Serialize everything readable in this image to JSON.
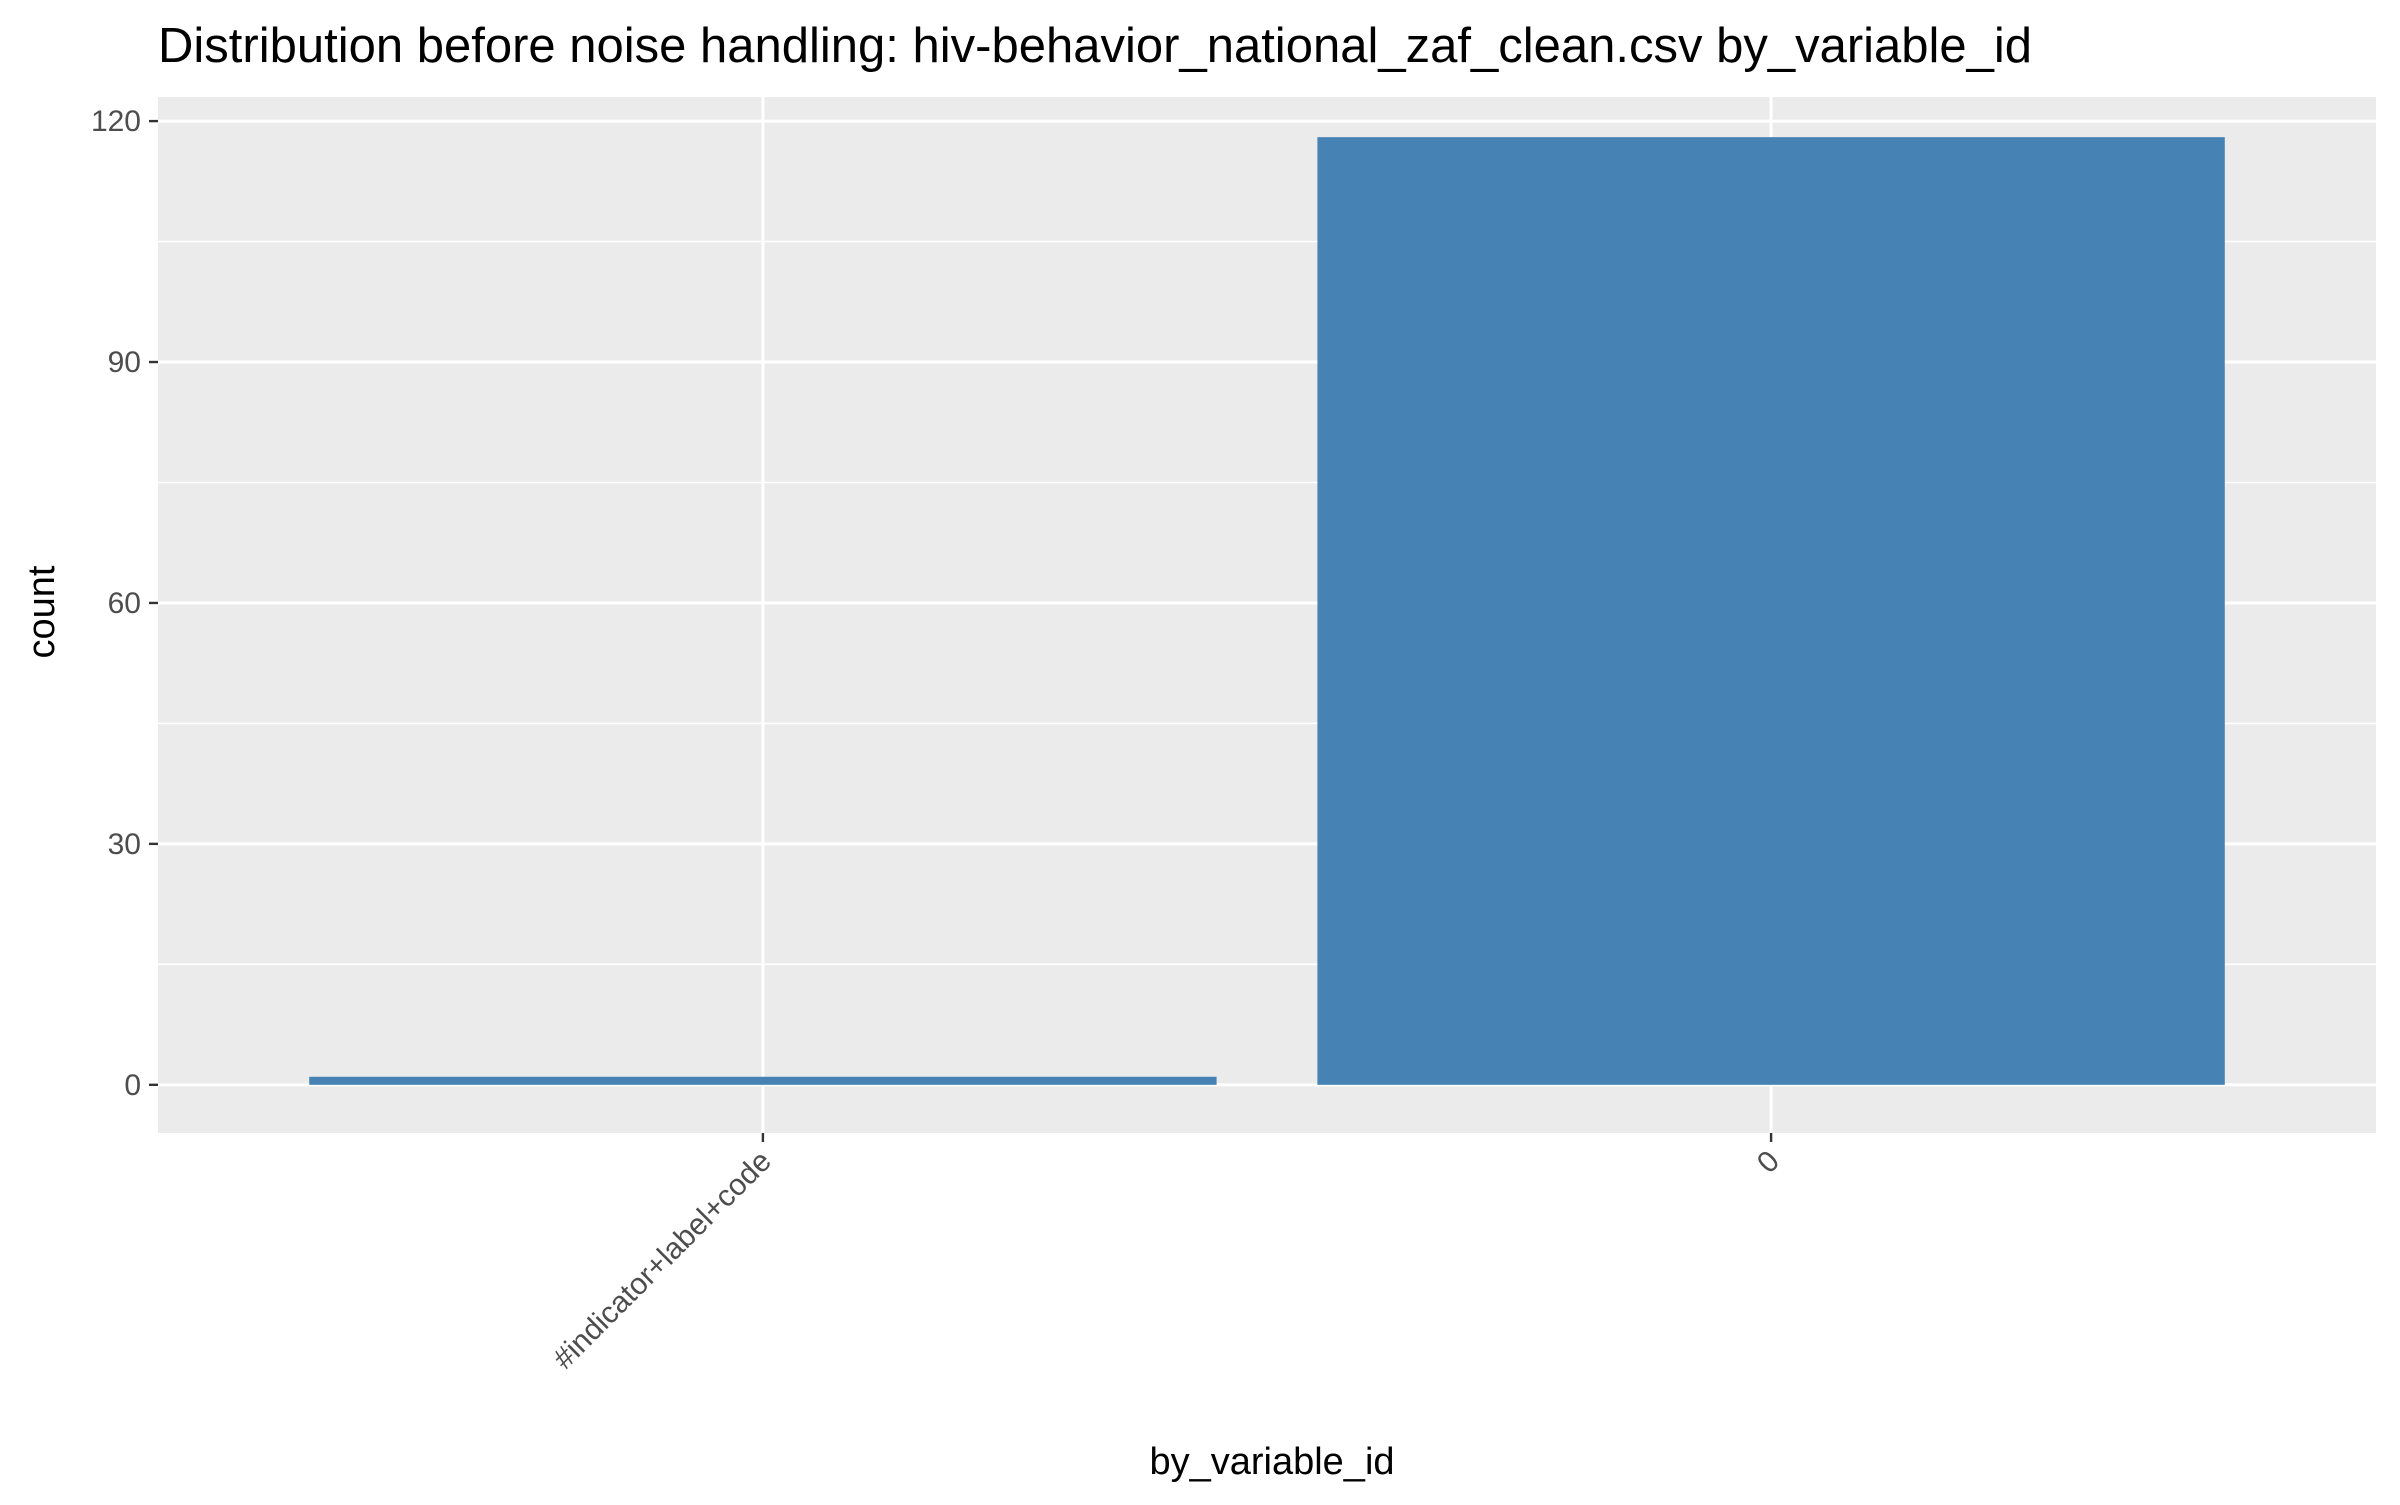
{
  "chart_data": {
    "type": "bar",
    "title": "Distribution before noise handling: hiv-behavior_national_zaf_clean.csv by_variable_id",
    "xlabel": "by_variable_id",
    "ylabel": "count",
    "categories": [
      "#indicator+label+code",
      "0"
    ],
    "values": [
      1,
      118
    ],
    "ylim": [
      -6,
      123
    ],
    "yticks": [
      0,
      30,
      60,
      90,
      120
    ],
    "grid": true,
    "legend": "none",
    "colors": {
      "bar": "#4682B4",
      "panel": "#EBEBEB",
      "grid": "#FFFFFF",
      "ticks": "#333333"
    }
  }
}
